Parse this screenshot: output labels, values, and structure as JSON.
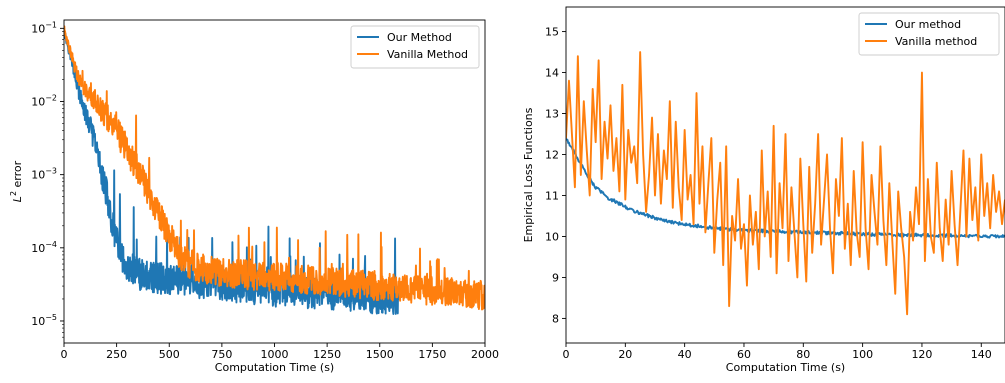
{
  "chart_data": [
    {
      "type": "line",
      "xlabel": "Computation Time (s)",
      "ylabel": "L² error",
      "ylabel_parts": {
        "base": "L",
        "sup": "2",
        "rest": " error"
      },
      "yscale": "log",
      "xlim": [
        0,
        2000
      ],
      "ylim": [
        5e-06,
        0.13
      ],
      "x_ticks": [
        0,
        250,
        500,
        750,
        1000,
        1250,
        1500,
        1750,
        2000
      ],
      "y_ticks": [
        1e-05,
        0.0001,
        0.001,
        0.01,
        0.1
      ],
      "y_tick_labels": [
        {
          "base": "10",
          "exp": "−5"
        },
        {
          "base": "10",
          "exp": "−4"
        },
        {
          "base": "10",
          "exp": "−3"
        },
        {
          "base": "10",
          "exp": "−2"
        },
        {
          "base": "10",
          "exp": "−1"
        }
      ],
      "legend_position": "top-right",
      "grid": false,
      "series": [
        {
          "name": "Our Method",
          "color": "#1f77b4",
          "noise": 0.22,
          "spike_rate": 0.05,
          "spike_scale": 0.35,
          "x": [
            0,
            25,
            50,
            75,
            100,
            125,
            150,
            175,
            200,
            225,
            250,
            275,
            300,
            350,
            400,
            500,
            600,
            700,
            800,
            900,
            1000,
            1100,
            1200,
            1300,
            1400,
            1500,
            1590
          ],
          "y": [
            0.09,
            0.05,
            0.025,
            0.012,
            0.007,
            0.0045,
            0.0025,
            0.0012,
            0.0006,
            0.00025,
            0.00012,
            7e-05,
            5.5e-05,
            4.5e-05,
            4e-05,
            3.8e-05,
            3.5e-05,
            3.2e-05,
            3e-05,
            2.8e-05,
            2.6e-05,
            2.5e-05,
            2.4e-05,
            2.3e-05,
            2.2e-05,
            2e-05,
            2e-05
          ]
        },
        {
          "name": "Vanilla Method",
          "color": "#ff7f0e",
          "noise": 0.2,
          "spike_rate": 0.04,
          "spike_scale": 0.3,
          "x": [
            0,
            25,
            50,
            75,
            100,
            150,
            200,
            250,
            300,
            350,
            400,
            450,
            500,
            550,
            600,
            700,
            800,
            900,
            1000,
            1100,
            1200,
            1300,
            1400,
            1500,
            1600,
            1700,
            1800,
            1900,
            2000
          ],
          "y": [
            0.1,
            0.055,
            0.03,
            0.019,
            0.015,
            0.01,
            0.0065,
            0.004,
            0.0022,
            0.0012,
            0.0006,
            0.0003,
            0.00015,
            8e-05,
            6e-05,
            4.8e-05,
            4.5e-05,
            4.2e-05,
            4e-05,
            3.8e-05,
            3.6e-05,
            3.4e-05,
            3.2e-05,
            3e-05,
            2.8e-05,
            2.6e-05,
            2.5e-05,
            2.4e-05,
            2.2e-05
          ]
        }
      ]
    },
    {
      "type": "line",
      "xlabel": "Computation Time (s)",
      "ylabel": "Empirical Loss Functions",
      "yscale": "linear",
      "xlim": [
        0,
        148
      ],
      "ylim": [
        7.4,
        15.6
      ],
      "x_ticks": [
        0,
        20,
        40,
        60,
        80,
        100,
        120,
        140
      ],
      "y_ticks": [
        8,
        9,
        10,
        11,
        12,
        13,
        14,
        15
      ],
      "legend_position": "top-right",
      "grid": false,
      "series": [
        {
          "name": "Our method",
          "color": "#1f77b4",
          "x": [
            0,
            2,
            4,
            6,
            8,
            10,
            14,
            18,
            22,
            26,
            30,
            35,
            40,
            45,
            50,
            60,
            70,
            80,
            90,
            100,
            110,
            120,
            130,
            140,
            148
          ],
          "y": [
            12.4,
            12.15,
            11.9,
            11.65,
            11.4,
            11.2,
            10.95,
            10.8,
            10.65,
            10.55,
            10.45,
            10.35,
            10.3,
            10.25,
            10.2,
            10.15,
            10.12,
            10.1,
            10.08,
            10.06,
            10.04,
            10.03,
            10.02,
            10.0,
            10.0
          ]
        },
        {
          "name": "Vanilla method",
          "color": "#ff7f0e",
          "x": [
            0,
            1,
            2,
            3,
            4,
            5,
            6,
            7,
            8,
            9,
            10,
            11,
            12,
            13,
            14,
            15,
            16,
            17,
            18,
            19,
            20,
            21,
            22,
            23,
            24,
            25,
            26,
            27,
            28,
            29,
            30,
            31,
            32,
            33,
            34,
            35,
            36,
            37,
            38,
            39,
            40,
            41,
            42,
            43,
            44,
            45,
            46,
            47,
            48,
            49,
            50,
            51,
            52,
            53,
            54,
            55,
            56,
            57,
            58,
            59,
            60,
            61,
            62,
            63,
            64,
            65,
            66,
            67,
            68,
            69,
            70,
            71,
            72,
            73,
            74,
            75,
            76,
            77,
            78,
            79,
            80,
            81,
            82,
            83,
            84,
            85,
            86,
            87,
            88,
            89,
            90,
            91,
            92,
            93,
            94,
            95,
            96,
            97,
            98,
            99,
            100,
            101,
            102,
            103,
            104,
            105,
            106,
            107,
            108,
            109,
            110,
            111,
            112,
            113,
            114,
            115,
            116,
            117,
            118,
            119,
            120,
            121,
            122,
            123,
            124,
            125,
            126,
            127,
            128,
            129,
            130,
            131,
            132,
            133,
            134,
            135,
            136,
            137,
            138,
            139,
            140,
            141,
            142,
            143,
            144,
            145,
            146,
            147,
            148
          ],
          "y": [
            12.4,
            13.8,
            12.5,
            11.2,
            14.4,
            11.5,
            13.3,
            12.1,
            11.0,
            13.6,
            12.3,
            14.3,
            11.4,
            12.8,
            11.9,
            13.2,
            11.6,
            12.4,
            11.1,
            13.7,
            10.9,
            12.6,
            11.8,
            12.2,
            11.3,
            14.5,
            12.0,
            10.6,
            11.5,
            12.9,
            11.0,
            12.5,
            10.8,
            12.1,
            11.4,
            13.3,
            10.7,
            12.8,
            11.2,
            10.4,
            12.6,
            10.9,
            11.5,
            10.3,
            13.5,
            10.8,
            12.2,
            10.1,
            11.3,
            12.4,
            9.6,
            10.9,
            11.8,
            9.3,
            12.2,
            8.3,
            10.5,
            9.9,
            11.4,
            9.7,
            10.3,
            8.8,
            11.0,
            9.8,
            10.6,
            9.2,
            12.1,
            10.0,
            11.1,
            9.5,
            12.7,
            9.1,
            11.3,
            10.2,
            12.5,
            9.4,
            11.2,
            10.1,
            9.0,
            11.9,
            10.3,
            8.9,
            11.7,
            9.6,
            10.8,
            12.5,
            9.8,
            10.9,
            12.0,
            10.2,
            9.1,
            11.4,
            10.5,
            12.4,
            9.7,
            10.8,
            9.3,
            11.6,
            10.1,
            9.5,
            12.3,
            10.2,
            9.2,
            11.5,
            10.6,
            9.8,
            12.2,
            10.4,
            9.3,
            11.3,
            9.9,
            8.6,
            11.1,
            10.2,
            9.5,
            8.1,
            10.6,
            9.9,
            11.2,
            10.3,
            14.0,
            9.4,
            11.4,
            10.0,
            9.6,
            11.8,
            10.2,
            9.4,
            10.9,
            9.8,
            11.6,
            10.3,
            9.3,
            10.7,
            12.1,
            10.0,
            11.9,
            10.4,
            11.2,
            9.9,
            12.0,
            10.5,
            11.3,
            10.2,
            11.5,
            10.6,
            11.1,
            10.3,
            10.9
          ]
        }
      ]
    }
  ]
}
